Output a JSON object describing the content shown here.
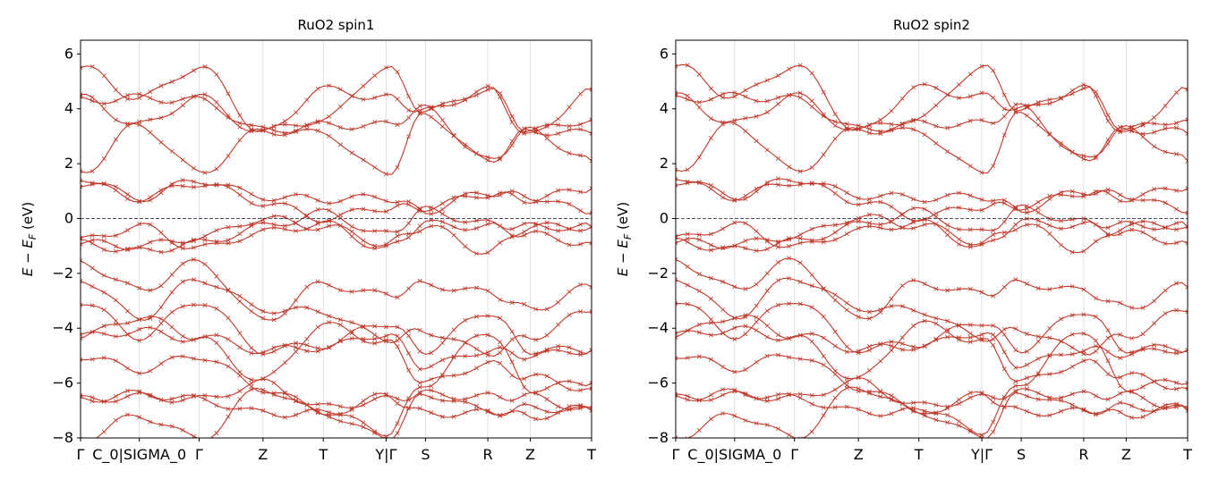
{
  "chart_data": [
    {
      "type": "line",
      "title": "RuO2  spin1",
      "ylabel": "E − E_F  (eV)",
      "ylabel_main": "E − E",
      "ylabel_sub": "F",
      "ylabel_unit": "  (eV)",
      "ylim": [
        -8,
        6.5
      ],
      "yticks": [
        6,
        4,
        2,
        0,
        -2,
        -4,
        -6,
        -8
      ],
      "xticks": [
        {
          "x": 0.0,
          "label": "Γ"
        },
        {
          "x": 0.115,
          "label": "C_0|SIGMA_0"
        },
        {
          "x": 0.232,
          "label": "Γ"
        },
        {
          "x": 0.357,
          "label": "Z"
        },
        {
          "x": 0.475,
          "label": "T"
        },
        {
          "x": 0.598,
          "label": "Y|Γ"
        },
        {
          "x": 0.675,
          "label": "S"
        },
        {
          "x": 0.797,
          "label": "R"
        },
        {
          "x": 0.88,
          "label": "Z"
        },
        {
          "x": 1.0,
          "label": "T"
        }
      ],
      "fermi_level": 0,
      "grid": "vertical lines at high-symmetry points",
      "colors": {
        "bands": "#c0392b",
        "reference": "#888888",
        "fermi": "#2c3e50"
      }
    },
    {
      "type": "line",
      "title": "RuO2  spin2",
      "ylabel": "E − E_F  (eV)",
      "ylabel_main": "E − E",
      "ylabel_sub": "F",
      "ylabel_unit": "  (eV)",
      "ylim": [
        -8,
        6.5
      ],
      "yticks": [
        6,
        4,
        2,
        0,
        -2,
        -4,
        -6,
        -8
      ],
      "xticks": [
        {
          "x": 0.0,
          "label": "Γ"
        },
        {
          "x": 0.115,
          "label": "C_0|SIGMA_0"
        },
        {
          "x": 0.232,
          "label": "Γ"
        },
        {
          "x": 0.357,
          "label": "Z"
        },
        {
          "x": 0.475,
          "label": "T"
        },
        {
          "x": 0.598,
          "label": "Y|Γ"
        },
        {
          "x": 0.675,
          "label": "S"
        },
        {
          "x": 0.797,
          "label": "R"
        },
        {
          "x": 0.88,
          "label": "Z"
        },
        {
          "x": 1.0,
          "label": "T"
        }
      ],
      "fermi_level": 0,
      "grid": "vertical lines at high-symmetry points",
      "colors": {
        "bands": "#c0392b",
        "reference": "#888888",
        "fermi": "#2c3e50"
      }
    }
  ]
}
